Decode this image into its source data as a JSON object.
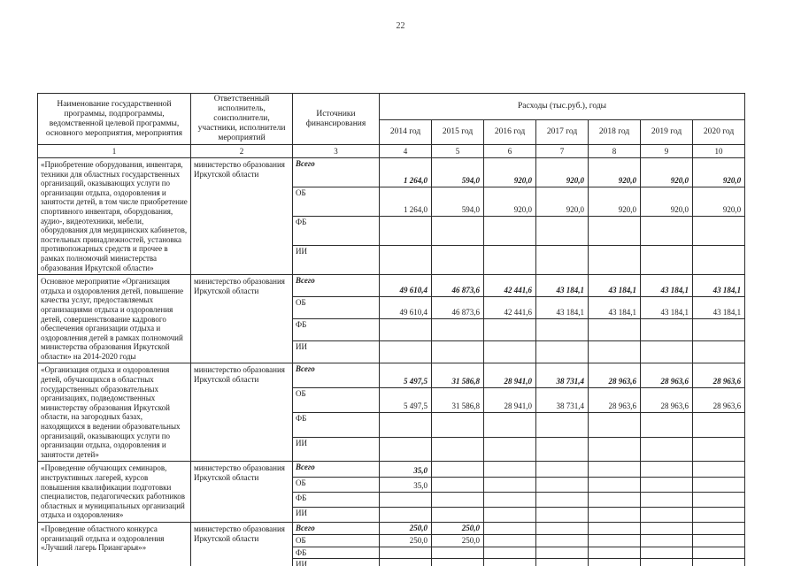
{
  "page": {
    "number": "22"
  },
  "table": {
    "headers": {
      "col1": "Наименование государственной программы, подпрограммы, ведомственной целевой программы, основного мероприятия, мероприятия",
      "col2": "Ответственный исполнитель, соисполнители, участники, исполнители мероприятий",
      "col3": "Источники финансирования",
      "expenses": "Расходы (тыс.руб.), годы",
      "years": [
        "2014 год",
        "2015 год",
        "2016 год",
        "2017 год",
        "2018 год",
        "2019 год",
        "2020 год"
      ],
      "col_numbers": [
        "1",
        "2",
        "3",
        "4",
        "5",
        "6",
        "7",
        "8",
        "9",
        "10"
      ]
    },
    "rows": [
      {
        "name": "«Приобретение оборудования, инвентаря, техники для областных государственных организаций, оказывающих услуги по организации отдыха, оздоровления и занятости детей, в том числе приобретение спортивного инвентаря, оборудования, аудио-, видеотехники, мебели, оборудования для медицинских кабинетов, постельных принадлежностей, установка противопожарных средств и прочее в рамках полномочий министерства образования Иркутской области»",
        "executor": "министерство образования Иркутской области",
        "sources": [
          {
            "label": "Всего",
            "bold": true,
            "values": [
              "1 264,0",
              "594,0",
              "920,0",
              "920,0",
              "920,0",
              "920,0",
              "920,0"
            ]
          },
          {
            "label": "ОБ",
            "bold": false,
            "values": [
              "1 264,0",
              "594,0",
              "920,0",
              "920,0",
              "920,0",
              "920,0",
              "920,0"
            ]
          },
          {
            "label": "ФБ",
            "bold": false,
            "values": [
              "",
              "",
              "",
              "",
              "",
              "",
              ""
            ]
          },
          {
            "label": "ИИ",
            "bold": false,
            "values": [
              "",
              "",
              "",
              "",
              "",
              "",
              ""
            ]
          }
        ]
      },
      {
        "name": "Основное мероприятие «Организация отдыха и оздоровления детей, повышение качества услуг, предоставляемых организациями отдыха и оздоровления детей, совершенствование кадрового обеспечения организации отдыха и оздоровления детей в рамках полномочий министерства образования Иркутской области» на 2014-2020 годы",
        "executor": "министерство образования Иркутской области",
        "sources": [
          {
            "label": "Всего",
            "bold": true,
            "values": [
              "49 610,4",
              "46 873,6",
              "42 441,6",
              "43 184,1",
              "43 184,1",
              "43 184,1",
              "43 184,1"
            ]
          },
          {
            "label": "ОБ",
            "bold": false,
            "values": [
              "49 610,4",
              "46 873,6",
              "42 441,6",
              "43 184,1",
              "43 184,1",
              "43 184,1",
              "43 184,1"
            ]
          },
          {
            "label": "ФБ",
            "bold": false,
            "values": [
              "",
              "",
              "",
              "",
              "",
              "",
              ""
            ]
          },
          {
            "label": "ИИ",
            "bold": false,
            "values": [
              "",
              "",
              "",
              "",
              "",
              "",
              ""
            ]
          }
        ]
      },
      {
        "name": "«Организация отдыха и оздоровления детей, обучающихся в областных государственных образовательных организациях, подведомственных министерству образования Иркутской области, на загородных базах, находящихся в ведении образовательных организаций, оказывающих услуги по организации отдыха, оздоровления и занятости детей»",
        "executor": "министерство образования Иркутской области",
        "sources": [
          {
            "label": "Всего",
            "bold": true,
            "values": [
              "5 497,5",
              "31 586,8",
              "28 941,0",
              "38 731,4",
              "28 963,6",
              "28 963,6",
              "28 963,6"
            ]
          },
          {
            "label": "ОБ",
            "bold": false,
            "values": [
              "5 497,5",
              "31 586,8",
              "28 941,0",
              "38 731,4",
              "28 963,6",
              "28 963,6",
              "28 963,6"
            ]
          },
          {
            "label": "ФБ",
            "bold": false,
            "values": [
              "",
              "",
              "",
              "",
              "",
              "",
              ""
            ]
          },
          {
            "label": "ИИ",
            "bold": false,
            "values": [
              "",
              "",
              "",
              "",
              "",
              "",
              ""
            ]
          }
        ]
      },
      {
        "name": "«Проведение обучающих семинаров, инструктивных лагерей, курсов повышения квалификации подготовки специалистов, педагогических работников областных и муниципальных организаций отдыха и оздоровления»",
        "executor": "министерство образования Иркутской области",
        "sources": [
          {
            "label": "Всего",
            "bold": true,
            "values": [
              "35,0",
              "",
              "",
              "",
              "",
              "",
              ""
            ]
          },
          {
            "label": "ОБ",
            "bold": false,
            "values": [
              "35,0",
              "",
              "",
              "",
              "",
              "",
              ""
            ]
          },
          {
            "label": "ФБ",
            "bold": false,
            "values": [
              "",
              "",
              "",
              "",
              "",
              "",
              ""
            ]
          },
          {
            "label": "ИИ",
            "bold": false,
            "values": [
              "",
              "",
              "",
              "",
              "",
              "",
              ""
            ]
          }
        ]
      },
      {
        "name": "«Проведение областного конкурса организаций отдыха и оздоровления «Лучший лагерь Приангарья»»",
        "executor": "министерство образования Иркутской области",
        "sources": [
          {
            "label": "Всего",
            "bold": true,
            "values": [
              "250,0",
              "250,0",
              "",
              "",
              "",
              "",
              ""
            ]
          },
          {
            "label": "ОБ",
            "bold": false,
            "values": [
              "250,0",
              "250,0",
              "",
              "",
              "",
              "",
              ""
            ]
          },
          {
            "label": "ФБ",
            "bold": false,
            "values": [
              "",
              "",
              "",
              "",
              "",
              "",
              ""
            ]
          },
          {
            "label": "ИИ",
            "bold": false,
            "values": [
              "",
              "",
              "",
              "",
              "",
              "",
              ""
            ]
          }
        ]
      }
    ]
  }
}
